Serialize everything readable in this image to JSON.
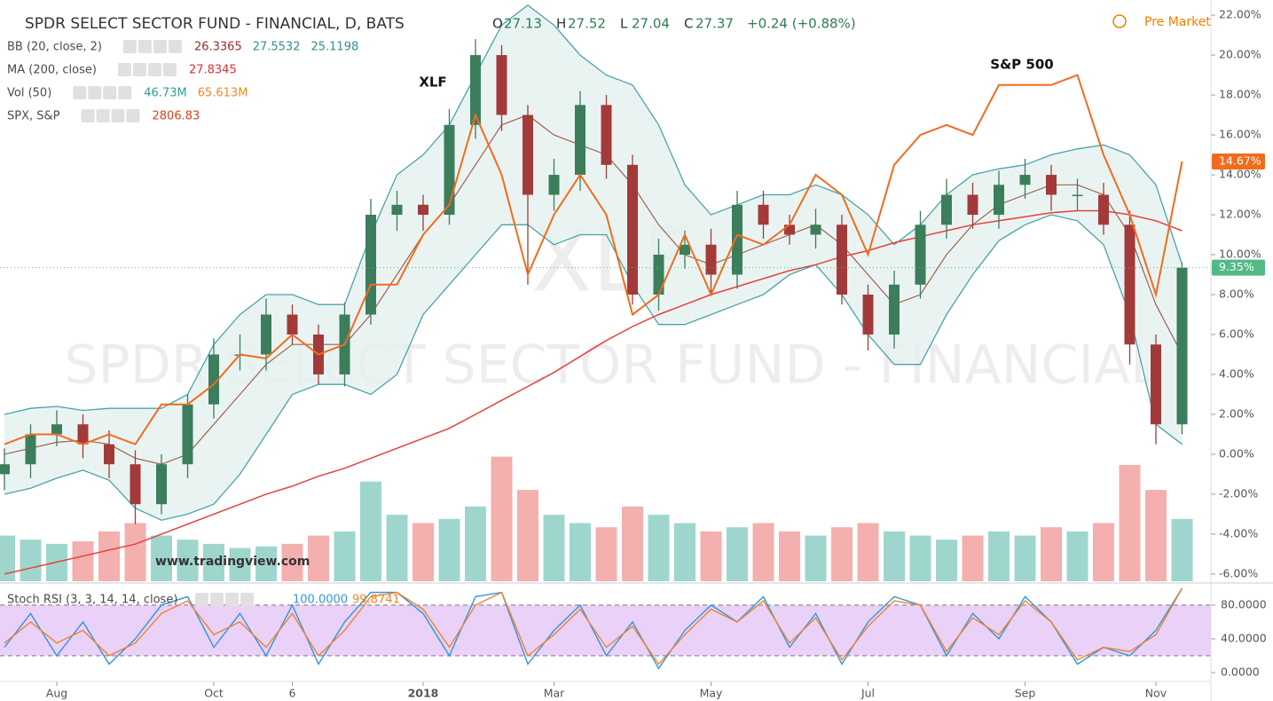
{
  "chart_data": {
    "type": "candlestick",
    "title": "SPDR SELECT SECTOR FUND - FINANCIAL, D, BATS",
    "ohlc": [
      {
        "label": "O",
        "value": 27.13
      },
      {
        "label": "H",
        "value": 27.52
      },
      {
        "label": "L",
        "value": 27.04
      },
      {
        "label": "C",
        "value": 27.37
      }
    ],
    "change": "+0.24 (+0.88%)",
    "pre_market": "Pre Market",
    "indicators": [
      {
        "name": "BB (20, close, 2)",
        "values": [
          26.3365,
          27.5532,
          25.1198
        ],
        "colors": [
          "#9b2b2b",
          "#2f8f8f",
          "#2f8f8f"
        ]
      },
      {
        "name": "MA (200, close)",
        "values": [
          27.8345
        ],
        "colors": [
          "#d83030"
        ]
      },
      {
        "name": "Vol (50)",
        "values": [
          "46.73M",
          "65.613M"
        ],
        "colors": [
          "#2f9f8f",
          "#f08a24"
        ]
      },
      {
        "name": "SPX, S&P",
        "values": [
          2806.83
        ],
        "colors": [
          "#d84315"
        ]
      }
    ],
    "annotations": [
      "XLF",
      "S&P 500"
    ],
    "watermark": [
      "XLF",
      "SPDR SELECT SECTOR FUND - FINANCIAL"
    ],
    "credit": "www.tradingview.com",
    "categories": [
      null,
      null,
      "Aug",
      null,
      null,
      null,
      null,
      null,
      "Oct",
      null,
      null,
      "6",
      null,
      null,
      null,
      null,
      "2018",
      null,
      null,
      null,
      null,
      "Mar",
      null,
      null,
      null,
      null,
      null,
      "May",
      null,
      null,
      null,
      null,
      null,
      "Jul",
      null,
      null,
      null,
      null,
      null,
      "Sep",
      null,
      null,
      null,
      null,
      "Nov",
      null
    ],
    "ylim": [
      -6.36,
      22.76
    ],
    "yticks": [
      {
        "value": -6,
        "label": "-6.00%"
      },
      {
        "value": -4,
        "label": "-4.00%"
      },
      {
        "value": -2,
        "label": "-2.00%"
      },
      {
        "value": 0,
        "label": "0.00%"
      },
      {
        "value": 2,
        "label": "2.00%"
      },
      {
        "value": 4,
        "label": "4.00%"
      },
      {
        "value": 6,
        "label": "6.00%"
      },
      {
        "value": 8,
        "label": "8.00%"
      },
      {
        "value": 10,
        "label": "10.00%"
      },
      {
        "value": 12,
        "label": "12.00%"
      },
      {
        "value": 14,
        "label": "14.00%"
      },
      {
        "value": 16,
        "label": "16.00%"
      },
      {
        "value": 18,
        "label": "18.00%"
      },
      {
        "value": 20,
        "label": "20.00%"
      },
      {
        "value": 22,
        "label": "22.00%"
      }
    ],
    "xlf": {
      "up_color": "#3c7d5c",
      "down_color": "#a33a3a",
      "open": [
        -1.0,
        -0.5,
        1.0,
        1.5,
        0.5,
        -0.5,
        -2.5,
        -0.5,
        2.5,
        5.0,
        5.0,
        7.0,
        6.0,
        4.0,
        7.0,
        12.0,
        12.5,
        12.0,
        16.5,
        20.0,
        17.0,
        13.0,
        14.0,
        17.5,
        14.5,
        8.0,
        10.0,
        10.5,
        9.0,
        12.5,
        11.5,
        11.0,
        11.5,
        8.0,
        6.0,
        8.5,
        11.5,
        13.0,
        12.0,
        13.5,
        14.0,
        13.0,
        13.0,
        11.5,
        5.5,
        1.5
      ],
      "high": [
        0.3,
        1.5,
        2.2,
        2.0,
        1.2,
        0.2,
        0.0,
        3.0,
        5.8,
        6.0,
        7.8,
        7.5,
        6.5,
        7.6,
        12.8,
        13.2,
        13.0,
        17.3,
        20.8,
        20.5,
        17.5,
        14.8,
        18.2,
        18.0,
        15.0,
        10.8,
        11.2,
        11.3,
        13.2,
        13.2,
        12.0,
        12.3,
        12.0,
        8.5,
        9.2,
        12.2,
        13.8,
        13.6,
        14.2,
        14.8,
        14.5,
        13.8,
        13.6,
        12.2,
        6.0,
        9.6
      ],
      "low": [
        -1.8,
        -1.2,
        0.4,
        -0.2,
        -1.2,
        -3.5,
        -3.0,
        -1.2,
        1.8,
        4.2,
        4.2,
        5.5,
        3.5,
        3.4,
        6.5,
        11.2,
        11.2,
        11.5,
        15.8,
        16.2,
        8.5,
        12.2,
        13.2,
        13.8,
        7.5,
        7.2,
        9.3,
        8.0,
        8.3,
        10.8,
        10.5,
        10.3,
        7.5,
        5.2,
        5.3,
        7.8,
        10.8,
        11.3,
        11.3,
        12.8,
        12.2,
        12.2,
        11.0,
        4.5,
        0.5,
        1.0
      ],
      "values": [
        -0.5,
        1.0,
        1.5,
        0.5,
        -0.5,
        -2.5,
        -0.5,
        2.5,
        5.0,
        5.0,
        7.0,
        6.0,
        4.0,
        7.0,
        12.0,
        12.5,
        12.0,
        16.5,
        20.0,
        17.0,
        13.0,
        14.0,
        17.5,
        14.5,
        8.0,
        10.0,
        10.5,
        9.0,
        12.5,
        11.5,
        11.0,
        11.5,
        8.0,
        6.0,
        8.5,
        11.5,
        13.0,
        12.0,
        13.5,
        14.0,
        13.0,
        13.0,
        11.5,
        5.5,
        1.5,
        9.35
      ],
      "value_labels": [
        null,
        null,
        null,
        null,
        null,
        null,
        null,
        null,
        null,
        null,
        null,
        null,
        null,
        null,
        null,
        null,
        null,
        null,
        null,
        null,
        null,
        null,
        null,
        null,
        null,
        null,
        null,
        null,
        null,
        null,
        null,
        null,
        null,
        null,
        null,
        null,
        null,
        null,
        null,
        null,
        null,
        null,
        null,
        null,
        null,
        "9.35%"
      ],
      "label_color": "#53b987"
    },
    "spx": {
      "color": "#f26b1d",
      "values": [
        0.5,
        1.0,
        1.0,
        0.5,
        1.0,
        0.5,
        2.5,
        2.5,
        3.5,
        5.0,
        4.8,
        6.0,
        5.0,
        5.5,
        8.5,
        8.5,
        11.0,
        12.5,
        17.0,
        14.0,
        9.0,
        12.0,
        14.0,
        12.0,
        7.0,
        8.0,
        11.0,
        8.0,
        11.0,
        10.5,
        11.5,
        14.0,
        13.0,
        10.0,
        14.5,
        16.0,
        16.5,
        16.0,
        18.5,
        18.5,
        18.5,
        19.0,
        15.0,
        12.0,
        8.0,
        14.67
      ],
      "value_labels": [
        null,
        null,
        null,
        null,
        null,
        null,
        null,
        null,
        null,
        null,
        null,
        null,
        null,
        null,
        null,
        null,
        null,
        null,
        null,
        null,
        null,
        null,
        null,
        null,
        null,
        null,
        null,
        null,
        null,
        null,
        null,
        null,
        null,
        null,
        null,
        null,
        null,
        null,
        null,
        null,
        null,
        null,
        null,
        null,
        null,
        "14.67%"
      ]
    },
    "ma200": {
      "color": "#e8403c",
      "values": [
        -6.0,
        -5.7,
        -5.4,
        -5.1,
        -4.8,
        -4.5,
        -4.0,
        -3.5,
        -3.0,
        -2.5,
        -2.0,
        -1.6,
        -1.1,
        -0.7,
        -0.2,
        0.3,
        0.8,
        1.3,
        2.0,
        2.7,
        3.4,
        4.1,
        4.9,
        5.7,
        6.4,
        7.0,
        7.5,
        8.0,
        8.4,
        8.8,
        9.2,
        9.5,
        9.9,
        10.2,
        10.6,
        10.9,
        11.2,
        11.5,
        11.7,
        11.9,
        12.1,
        12.2,
        12.2,
        12.0,
        11.7,
        11.2
      ]
    },
    "bb": {
      "color": "#4aa3a8",
      "middle_color": "#a0614f",
      "fill": "#e3f1ef",
      "upper": [
        2.0,
        2.3,
        2.4,
        2.2,
        2.3,
        2.3,
        2.3,
        3.0,
        5.5,
        7.0,
        8.0,
        8.0,
        7.5,
        7.5,
        11.0,
        14.0,
        15.0,
        16.5,
        19.0,
        21.5,
        22.5,
        21.5,
        20.0,
        19.0,
        18.5,
        16.5,
        13.5,
        12.0,
        12.5,
        13.0,
        13.0,
        13.5,
        13.0,
        12.0,
        10.5,
        11.5,
        13.0,
        14.0,
        14.3,
        14.5,
        15.0,
        15.3,
        15.5,
        15.0,
        13.5,
        9.5
      ],
      "middle": [
        0.0,
        0.3,
        0.6,
        0.7,
        0.5,
        -0.2,
        -0.5,
        0.0,
        1.5,
        3.0,
        4.5,
        5.5,
        5.5,
        5.5,
        7.0,
        9.0,
        11.0,
        12.5,
        14.5,
        16.5,
        17.0,
        16.0,
        15.5,
        15.0,
        13.5,
        11.5,
        10.0,
        9.5,
        10.0,
        10.5,
        11.0,
        11.5,
        10.5,
        9.0,
        7.5,
        8.0,
        10.0,
        11.5,
        12.5,
        13.0,
        13.5,
        13.5,
        13.0,
        11.0,
        7.5,
        5.0
      ],
      "lower": [
        -2.0,
        -1.7,
        -1.2,
        -0.8,
        -1.3,
        -2.7,
        -3.3,
        -3.0,
        -2.5,
        -1.0,
        1.0,
        3.0,
        3.5,
        3.5,
        3.0,
        4.0,
        7.0,
        8.5,
        10.0,
        11.5,
        11.5,
        10.5,
        11.0,
        11.0,
        8.5,
        6.5,
        6.5,
        7.0,
        7.5,
        8.0,
        9.0,
        9.5,
        8.0,
        6.0,
        4.5,
        4.5,
        7.0,
        9.0,
        10.7,
        11.5,
        12.0,
        11.7,
        10.5,
        7.0,
        1.5,
        0.5
      ]
    },
    "volume": {
      "up_color": "#93d2c8",
      "down_color": "#f3a6a6",
      "ylim": [
        0,
        700
      ],
      "values": [
        55,
        50,
        45,
        48,
        60,
        70,
        55,
        50,
        45,
        40,
        42,
        45,
        55,
        60,
        120,
        80,
        70,
        75,
        90,
        150,
        110,
        80,
        70,
        65,
        90,
        80,
        70,
        60,
        65,
        70,
        60,
        55,
        65,
        70,
        60,
        55,
        50,
        55,
        60,
        55,
        65,
        60,
        70,
        140,
        110,
        75
      ]
    },
    "stoch": {
      "name": "Stoch RSI (3, 3, 14, 14, close)",
      "legend_values": [
        "100.0000",
        "99.8741"
      ],
      "k_color": "#2f96e0",
      "d_color": "#f0832a",
      "band_color": "#e6c9f7",
      "ylim": [
        -10.5,
        103
      ],
      "band": [
        20,
        80
      ],
      "yticks": [
        {
          "value": 0,
          "label": "0.0000"
        },
        {
          "value": 40,
          "label": "40.0000"
        },
        {
          "value": 80,
          "label": "80.0000"
        }
      ],
      "k": [
        30,
        70,
        20,
        60,
        10,
        40,
        80,
        90,
        30,
        70,
        20,
        80,
        10,
        60,
        95,
        95,
        70,
        20,
        90,
        95,
        10,
        50,
        80,
        20,
        60,
        5,
        50,
        80,
        60,
        90,
        30,
        70,
        10,
        60,
        90,
        80,
        20,
        70,
        40,
        90,
        60,
        10,
        30,
        20,
        50,
        100
      ],
      "d": [
        35,
        60,
        35,
        50,
        20,
        35,
        70,
        85,
        45,
        60,
        30,
        70,
        20,
        50,
        90,
        95,
        75,
        30,
        80,
        95,
        20,
        45,
        75,
        30,
        55,
        10,
        45,
        75,
        60,
        85,
        35,
        65,
        15,
        55,
        85,
        80,
        25,
        65,
        45,
        85,
        60,
        15,
        30,
        25,
        45,
        99.87
      ]
    }
  }
}
